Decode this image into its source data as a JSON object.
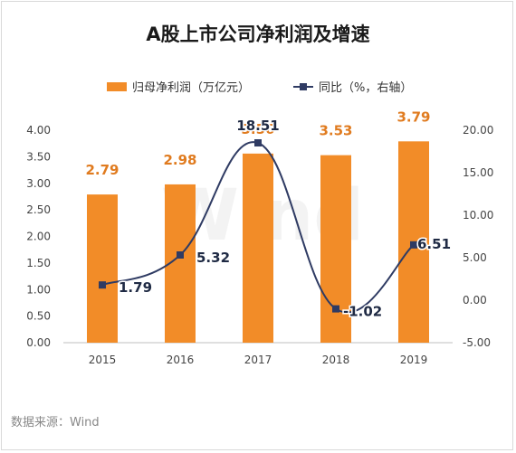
{
  "title": "A股上市公司净利润及增速",
  "source": "数据来源：Wind",
  "watermark": "Wind",
  "colors": {
    "bar": "#f28c28",
    "line": "#2f3b63",
    "bar_label": "#e07b1f",
    "line_label": "#1f2a44"
  },
  "chart_data": {
    "type": "bar",
    "categories": [
      "2015",
      "2016",
      "2017",
      "2018",
      "2019"
    ],
    "series": [
      {
        "name": "归母净利润（万亿元）",
        "type": "bar",
        "axis": "left",
        "values": [
          2.79,
          2.98,
          3.56,
          3.53,
          3.79
        ],
        "labels": [
          "2.79",
          "2.98",
          "3.56",
          "3.53",
          "3.79"
        ]
      },
      {
        "name": "同比（%，右轴）",
        "type": "line",
        "axis": "right",
        "values": [
          1.79,
          5.32,
          18.51,
          -1.02,
          6.51
        ],
        "labels": [
          "1.79",
          "5.32",
          "18.51",
          "-1.02",
          "6.51"
        ]
      }
    ],
    "y_left": {
      "min": 0,
      "max": 4,
      "step": 0.5,
      "ticks": [
        "0.00",
        "0.50",
        "1.00",
        "1.50",
        "2.00",
        "2.50",
        "3.00",
        "3.50",
        "4.00"
      ]
    },
    "y_right": {
      "min": -5,
      "max": 20,
      "step": 5,
      "ticks": [
        "-5.00",
        "0.00",
        "5.00",
        "10.00",
        "15.00",
        "20.00"
      ]
    },
    "legend": "top",
    "grid": false
  }
}
